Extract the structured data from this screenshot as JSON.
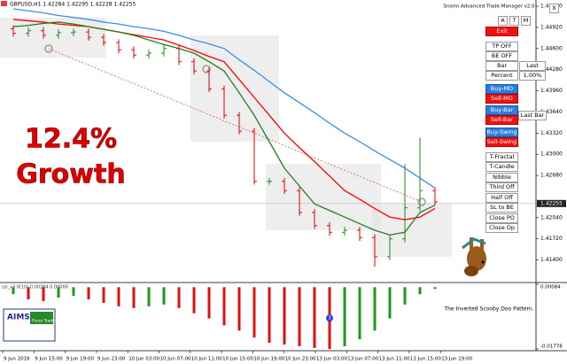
{
  "window_title": "GBPUSD,H1 1.42284 1.42295 1.42228 1.42255",
  "chart_data": {
    "type": "candlestick",
    "open": [
      1.449,
      1.4483,
      1.4487,
      1.448,
      1.4484,
      1.4485,
      1.4477,
      1.4469,
      1.4458,
      1.445,
      1.4453,
      1.446,
      1.444,
      1.4426,
      1.4399,
      1.4359,
      1.4335,
      1.4259,
      1.4259,
      1.4245,
      1.4212,
      1.4192,
      1.4182,
      1.4185,
      1.4174,
      1.4145,
      1.4172,
      1.4219,
      1.4245
    ],
    "high": [
      1.4495,
      1.4492,
      1.4492,
      1.4489,
      1.449,
      1.449,
      1.4482,
      1.4474,
      1.4463,
      1.4458,
      1.4465,
      1.4465,
      1.4445,
      1.4431,
      1.4404,
      1.4364,
      1.434,
      1.4264,
      1.4264,
      1.425,
      1.4217,
      1.4197,
      1.419,
      1.419,
      1.4179,
      1.4177,
      1.4285,
      1.4325,
      1.425
    ],
    "low": [
      1.4478,
      1.4478,
      1.4475,
      1.4475,
      1.4479,
      1.4472,
      1.4464,
      1.4453,
      1.4445,
      1.4445,
      1.4448,
      1.4435,
      1.4421,
      1.4394,
      1.4354,
      1.433,
      1.4254,
      1.4254,
      1.424,
      1.4207,
      1.4187,
      1.4177,
      1.4177,
      1.4169,
      1.413,
      1.414,
      1.4167,
      1.4214,
      1.4223
    ],
    "close": [
      1.4483,
      1.4487,
      1.448,
      1.4484,
      1.4485,
      1.4477,
      1.4469,
      1.4458,
      1.445,
      1.4453,
      1.446,
      1.444,
      1.4426,
      1.4399,
      1.4359,
      1.4335,
      1.4259,
      1.4259,
      1.4245,
      1.4212,
      1.4192,
      1.4182,
      1.4185,
      1.4174,
      1.4145,
      1.4172,
      1.4219,
      1.4245,
      1.4228
    ],
    "up_color": "#1a8a1a",
    "down_color": "#e00000",
    "series": [
      {
        "color": "#3a8ee6",
        "values": [
          1.452,
          1.4517,
          1.4514,
          1.451,
          1.4507,
          1.4504,
          1.45,
          1.4497,
          1.4493,
          1.449,
          1.4486,
          1.448,
          1.4473,
          1.4467,
          1.446,
          1.4443,
          1.4427,
          1.441,
          1.4393,
          1.4378,
          1.4363,
          1.4347,
          1.4332,
          1.4319,
          1.4305,
          1.4292,
          1.4279,
          1.4264,
          1.4249
        ]
      },
      {
        "color": "#ff0000",
        "values": [
          1.4504,
          1.4502,
          1.45,
          1.4497,
          1.4495,
          1.4493,
          1.4489,
          1.4485,
          1.4481,
          1.4477,
          1.4473,
          1.4465,
          1.4457,
          1.4448,
          1.444,
          1.4413,
          1.4386,
          1.4359,
          1.4332,
          1.431,
          1.4289,
          1.4267,
          1.4245,
          1.4232,
          1.4218,
          1.4205,
          1.4201,
          1.4205,
          1.4218
        ]
      },
      {
        "color": "#208020",
        "values": [
          1.4493,
          1.4495,
          1.4498,
          1.45,
          1.4497,
          1.4493,
          1.4489,
          1.4485,
          1.448,
          1.4473,
          1.4466,
          1.446,
          1.4453,
          1.444,
          1.4426,
          1.4393,
          1.4359,
          1.4319,
          1.4279,
          1.4252,
          1.4225,
          1.4215,
          1.4205,
          1.4195,
          1.4185,
          1.4178,
          1.4182,
          1.4212,
          1.4223
        ]
      }
    ],
    "ylim": [
      1.41073,
      1.45334
    ],
    "yticks": [
      {
        "value": 1.4524,
        "label": "1.45240"
      },
      {
        "value": 1.4492,
        "label": "1.44920"
      },
      {
        "value": 1.446,
        "label": "1.44600"
      },
      {
        "value": 1.4428,
        "label": "1.44280"
      },
      {
        "value": 1.4396,
        "label": "1.43960"
      },
      {
        "value": 1.4364,
        "label": "1.43640"
      },
      {
        "value": 1.4332,
        "label": "1.43320"
      },
      {
        "value": 1.43,
        "label": "1.43000"
      },
      {
        "value": 1.4268,
        "label": "1.42680"
      },
      {
        "value": 1.4204,
        "label": "1.42040"
      },
      {
        "value": 1.4172,
        "label": "1.41720"
      },
      {
        "value": 1.414,
        "label": "1.41400"
      }
    ],
    "current_price": {
      "value": 1.42255,
      "label": "1.42255"
    },
    "time_labels": [
      "9 Jun 2016",
      "9 Jun 15:00",
      "9 Jun 19:00",
      "9 Jun 23:00",
      "10 Jun 03:00",
      "10 Jun 07:00",
      "10 Jun 11:00",
      "10 Jun 15:00",
      "10 Jun 19:00",
      "10 Jun 23:00",
      "13 Jun 03:00",
      "13 Jun 07:00",
      "13 Jun 11:00",
      "13 Jun 15:00",
      "13 Jun 19:00"
    ]
  },
  "indicator": {
    "label": "ssi_v3.0(10) 0.00284 0.00000",
    "values": [
      -0.002,
      -0.0035,
      -0.004,
      -0.003,
      -0.0025,
      -0.0035,
      -0.0045,
      -0.0055,
      -0.006,
      -0.0055,
      -0.005,
      -0.006,
      -0.0075,
      -0.009,
      -0.011,
      -0.0125,
      -0.0145,
      -0.016,
      -0.0165,
      -0.017,
      -0.0175,
      -0.0178,
      -0.017,
      -0.015,
      -0.0125,
      -0.009,
      -0.005,
      -0.002,
      -0.0005
    ],
    "up_color": "#1a9a1a",
    "down_color": "#e01010",
    "ylim": [
      -0.01778,
      0.00084
    ],
    "yticks": [
      {
        "value": 0.00084,
        "label": "0.00084"
      },
      {
        "value": -0.01778,
        "label": "-0.01778"
      }
    ],
    "marker": "3"
  },
  "panel": {
    "title": "Snorm Advanced Trade Manager v2.0",
    "small_buttons": [
      "A",
      "T",
      "M",
      "X"
    ],
    "buttons": [
      "Exit",
      "TP OFF",
      "BE OFF",
      "Bar",
      "Last",
      "Percent",
      "1.00%",
      "Buy-MO",
      "Sell-MO",
      "Buy-Bar",
      "Sell-Bar",
      "Last Bar",
      "Buy-Swing",
      "Sell-Swing",
      "T-Fractal",
      "T-Candle",
      "Nibble",
      "Third Off",
      "Half Off",
      "SL to BE",
      "Close PO",
      "Close Op"
    ]
  },
  "annotations": {
    "growth_value": "12.4%",
    "growth_word": "Growth",
    "pattern_note": "The Inverted Scooby Doo Pattern.",
    "logo_title": "AIMS",
    "logo_sub": "Forex Trading"
  }
}
